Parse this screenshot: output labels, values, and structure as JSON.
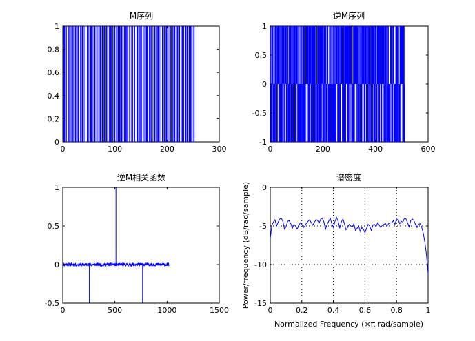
{
  "figure": {
    "background": "#ffffff",
    "axes_color": "#000000",
    "line_color": "#0000ff"
  },
  "chart_data": [
    {
      "type": "bar",
      "title": "M序列",
      "xlabel": "",
      "ylabel": "",
      "xlim": [
        0,
        300
      ],
      "ylim": [
        0,
        1
      ],
      "xticks": [
        0,
        100,
        200,
        300
      ],
      "yticks": [
        0,
        0.2,
        0.4,
        0.6,
        0.8,
        1
      ],
      "xtick_labels": [
        "0",
        "100",
        "200",
        "300"
      ],
      "ytick_labels": [
        "0",
        "0.2",
        "0.4",
        "0.6",
        "0.8",
        "1"
      ],
      "grid": false,
      "series": [
        {
          "x": [
            2,
            3,
            4,
            5,
            7,
            11,
            13,
            14,
            16,
            18,
            19,
            21,
            24,
            25,
            27,
            29,
            30,
            31,
            34,
            35,
            37,
            38,
            41,
            43,
            47,
            48,
            50,
            53,
            54,
            55,
            56,
            58,
            61,
            62,
            65,
            66,
            69,
            70,
            72,
            73,
            74,
            76,
            79,
            80,
            83,
            84,
            86,
            89,
            91,
            92,
            93,
            96,
            98,
            99,
            100,
            103,
            104,
            106,
            107,
            109,
            110,
            112,
            113,
            115,
            118,
            119,
            121,
            122,
            124,
            125,
            128,
            129,
            132,
            134,
            137,
            138,
            142,
            143,
            144,
            147,
            149,
            150,
            151,
            154,
            156,
            158,
            160,
            161,
            162,
            163,
            166,
            167,
            168,
            170,
            173,
            176,
            177,
            180,
            182,
            183,
            184,
            185,
            188,
            191,
            192,
            193,
            195,
            198,
            199,
            201,
            202,
            205,
            207,
            208,
            211,
            213,
            214,
            215,
            218,
            220,
            222,
            223,
            224,
            227,
            229,
            230,
            232,
            235,
            236,
            238,
            239,
            242,
            243,
            245,
            246,
            248,
            251,
            252
          ],
          "values": [
            1,
            1,
            1,
            1,
            1,
            1,
            1,
            1,
            1,
            1,
            1,
            1,
            1,
            1,
            1,
            1,
            1,
            1,
            1,
            1,
            1,
            1,
            1,
            1,
            1,
            1,
            1,
            1,
            1,
            1,
            1,
            1,
            1,
            1,
            1,
            1,
            1,
            1,
            1,
            1,
            1,
            1,
            1,
            1,
            1,
            1,
            1,
            1,
            1,
            1,
            1,
            1,
            1,
            1,
            1,
            1,
            1,
            1,
            1,
            1,
            1,
            1,
            1,
            1,
            1,
            1,
            1,
            1,
            1,
            1,
            1,
            1,
            1,
            1,
            1,
            1,
            1,
            1,
            1,
            1,
            1,
            1,
            1,
            1,
            1,
            1,
            1,
            1,
            1,
            1,
            1,
            1,
            1,
            1,
            1,
            1,
            1,
            1,
            1,
            1,
            1,
            1,
            1,
            1,
            1,
            1,
            1,
            1,
            1,
            1,
            1,
            1,
            1,
            1,
            1,
            1,
            1,
            1,
            1,
            1,
            1,
            1,
            1,
            1,
            1,
            1,
            1,
            1,
            1,
            1,
            1,
            1,
            1,
            1,
            1,
            1,
            1,
            1
          ]
        }
      ]
    },
    {
      "type": "bar",
      "title": "逆M序列",
      "xlabel": "",
      "ylabel": "",
      "xlim": [
        0,
        600
      ],
      "ylim": [
        -1,
        1
      ],
      "xticks": [
        0,
        200,
        400,
        600
      ],
      "yticks": [
        -1,
        -0.5,
        0,
        0.5,
        1
      ],
      "xtick_labels": [
        "0",
        "200",
        "400",
        "600"
      ],
      "ytick_labels": [
        "-1",
        "-0.5",
        "0",
        "0.5",
        "1"
      ],
      "grid": false,
      "series": [
        {
          "x_start": 1,
          "x_end": 510,
          "values": [
            1,
            -1
          ]
        }
      ]
    },
    {
      "type": "line",
      "title": "逆M相关函数",
      "xlabel": "",
      "ylabel": "",
      "xlim": [
        0,
        1500
      ],
      "ylim": [
        -0.5,
        1
      ],
      "xticks": [
        0,
        500,
        1000,
        1500
      ],
      "yticks": [
        -0.5,
        0,
        0.5,
        1
      ],
      "xtick_labels": [
        "0",
        "500",
        "1000",
        "1500"
      ],
      "ytick_labels": [
        "-0.5",
        "0",
        "0.5",
        "1"
      ],
      "grid": false,
      "series": [
        {
          "x_range": [
            0,
            1020
          ],
          "baseline": 0,
          "noise_amplitude": 0.02,
          "spikes": [
            {
              "x": 255,
              "y": -0.5
            },
            {
              "x": 510,
              "y": 1
            },
            {
              "x": 765,
              "y": -0.5
            }
          ]
        }
      ]
    },
    {
      "type": "line",
      "title": "谱密度",
      "xlabel": "Normalized Frequency  (×π rad/sample)",
      "ylabel": "Power/frequency (dB/rad/sample)",
      "xlim": [
        0,
        1
      ],
      "ylim": [
        -15,
        0
      ],
      "xticks": [
        0,
        0.2,
        0.4,
        0.6,
        0.8,
        1
      ],
      "yticks": [
        -15,
        -10,
        -5,
        0
      ],
      "xtick_labels": [
        "0",
        "0.2",
        "0.4",
        "0.6",
        "0.8",
        "1"
      ],
      "ytick_labels": [
        "-15",
        "-10",
        "-5",
        "0"
      ],
      "grid": true,
      "series": [
        {
          "x": [
            0,
            0.01,
            0.02,
            0.03,
            0.04,
            0.05,
            0.06,
            0.07,
            0.08,
            0.09,
            0.1,
            0.11,
            0.12,
            0.13,
            0.14,
            0.15,
            0.16,
            0.17,
            0.18,
            0.19,
            0.2,
            0.21,
            0.22,
            0.23,
            0.24,
            0.25,
            0.26,
            0.27,
            0.28,
            0.29,
            0.3,
            0.31,
            0.32,
            0.33,
            0.34,
            0.35,
            0.36,
            0.37,
            0.38,
            0.39,
            0.4,
            0.41,
            0.42,
            0.43,
            0.44,
            0.45,
            0.46,
            0.47,
            0.48,
            0.49,
            0.5,
            0.51,
            0.52,
            0.53,
            0.54,
            0.55,
            0.56,
            0.57,
            0.58,
            0.59,
            0.6,
            0.61,
            0.62,
            0.63,
            0.64,
            0.65,
            0.66,
            0.67,
            0.68,
            0.69,
            0.7,
            0.71,
            0.72,
            0.73,
            0.74,
            0.75,
            0.76,
            0.77,
            0.78,
            0.79,
            0.8,
            0.81,
            0.82,
            0.83,
            0.84,
            0.85,
            0.86,
            0.87,
            0.88,
            0.89,
            0.9,
            0.91,
            0.92,
            0.93,
            0.94,
            0.95,
            0.96,
            0.97,
            0.98,
            0.99,
            1
          ],
          "values": [
            -6.6,
            -4.9,
            -4.5,
            -4.2,
            -5.0,
            -4.5,
            -4.1,
            -4.0,
            -4.4,
            -5.4,
            -5.1,
            -4.4,
            -4.3,
            -4.7,
            -5.3,
            -4.8,
            -5.0,
            -5.4,
            -5.0,
            -4.6,
            -4.8,
            -5.2,
            -5.0,
            -4.6,
            -4.4,
            -4.2,
            -4.6,
            -4.9,
            -4.5,
            -4.2,
            -4.3,
            -4.6,
            -4.1,
            -4.0,
            -4.5,
            -5.4,
            -4.8,
            -4.4,
            -4.0,
            -4.7,
            -5.2,
            -4.4,
            -3.9,
            -4.4,
            -5.3,
            -4.5,
            -4.1,
            -4.7,
            -5.5,
            -5.2,
            -4.8,
            -5.0,
            -5.1,
            -4.7,
            -5.6,
            -5.3,
            -5.0,
            -5.7,
            -5.2,
            -5.4,
            -5.9,
            -5.3,
            -4.8,
            -5.0,
            -5.6,
            -4.9,
            -4.8,
            -5.1,
            -4.6,
            -4.9,
            -5.2,
            -4.9,
            -4.8,
            -4.7,
            -5.0,
            -4.7,
            -4.6,
            -4.6,
            -4.3,
            -4.8,
            -4.1,
            -4.2,
            -4.7,
            -4.4,
            -4.5,
            -4.0,
            -4.1,
            -4.6,
            -5.1,
            -4.3,
            -4.1,
            -4.3,
            -4.8,
            -5.2,
            -4.8,
            -4.7,
            -5.2,
            -6.0,
            -7.2,
            -8.8,
            -11.2
          ]
        }
      ]
    }
  ]
}
